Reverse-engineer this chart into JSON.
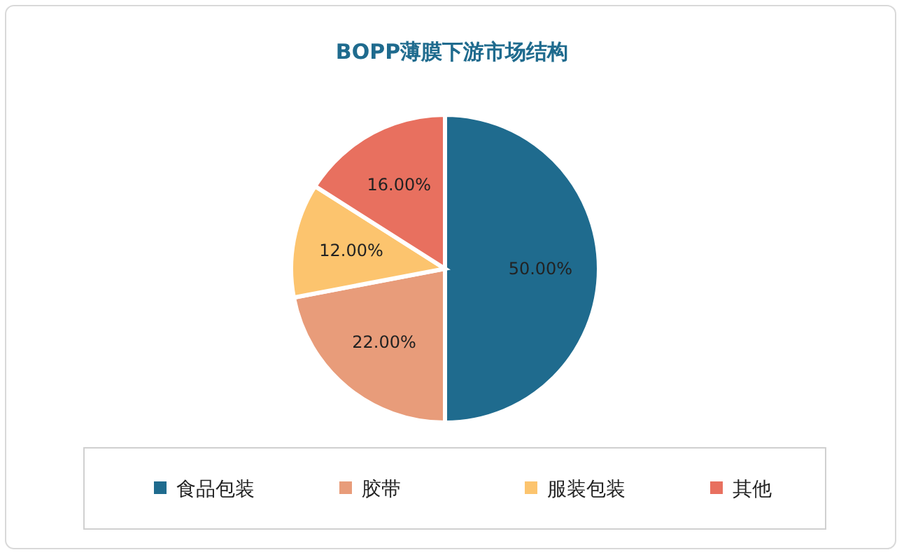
{
  "chart_data": {
    "type": "pie",
    "title": "BOPP薄膜下游市场结构",
    "categories": [
      "食品包装",
      "胶带",
      "服装包装",
      "其他"
    ],
    "values": [
      50,
      22,
      12,
      16
    ],
    "value_labels": [
      "50.00%",
      "22.00%",
      "12.00%",
      "16.00%"
    ],
    "colors": [
      "#1f6b8e",
      "#e89c7a",
      "#fcc46e",
      "#e8705f"
    ],
    "legend": "bottom"
  }
}
